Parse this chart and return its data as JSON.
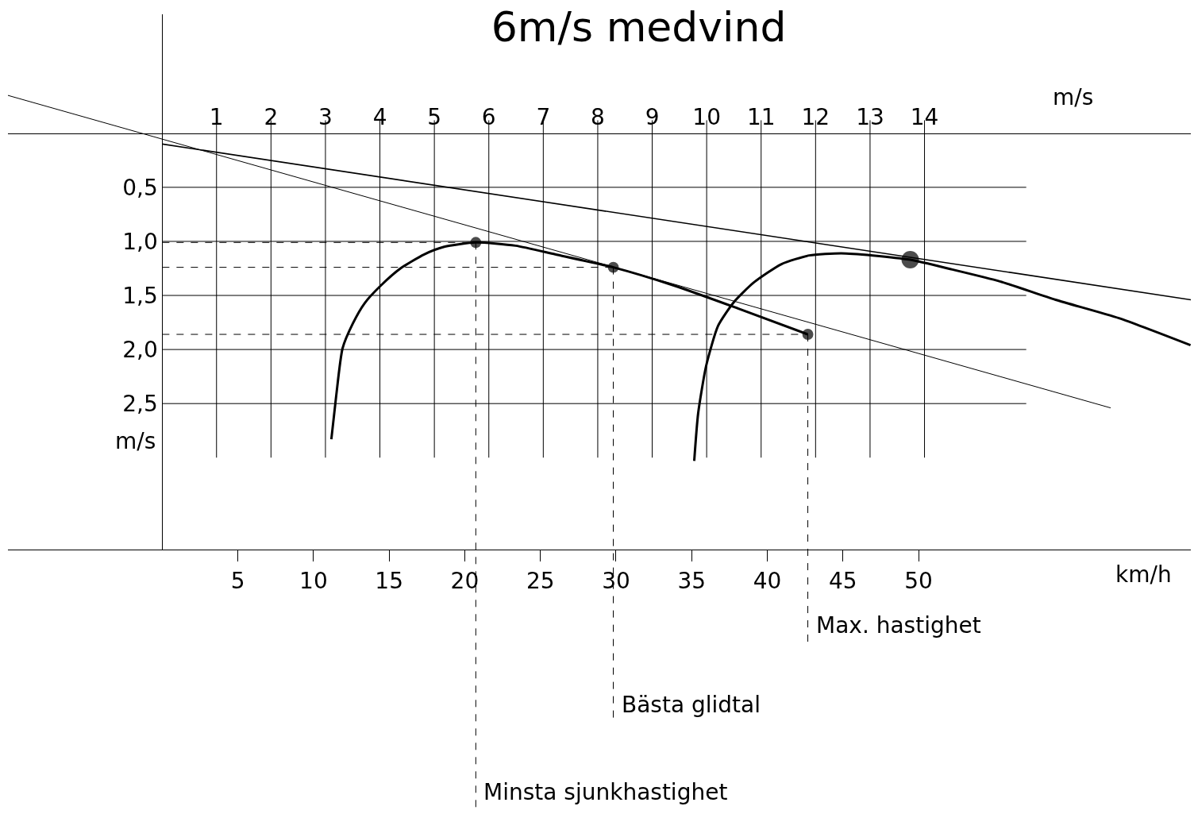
{
  "chart_data": {
    "type": "line",
    "title": "6m/s medvind",
    "xlabel": "km/h",
    "x2label": "m/s",
    "ylabel": "m/s",
    "xlim": [
      -10.2,
      68
    ],
    "xticks": [
      5,
      10,
      15,
      20,
      25,
      30,
      35,
      40,
      45,
      50
    ],
    "x2lim": [
      -2.83,
      18.89
    ],
    "x2ticks": [
      1,
      2,
      3,
      4,
      5,
      6,
      7,
      8,
      9,
      10,
      11,
      12,
      13,
      14
    ],
    "ylim": [
      3.85,
      -1.1
    ],
    "yticks": [
      {
        "value": 0.5,
        "label": "0,5"
      },
      {
        "value": 1.0,
        "label": "1,0"
      },
      {
        "value": 1.5,
        "label": "1,5"
      },
      {
        "value": 2.0,
        "label": "2,0"
      },
      {
        "value": 2.5,
        "label": "2,5"
      }
    ],
    "ref_lines": [
      {
        "axis": "x2",
        "value": 1
      },
      {
        "axis": "x2",
        "value": 2
      },
      {
        "axis": "x2",
        "value": 3
      },
      {
        "axis": "x2",
        "value": 4
      },
      {
        "axis": "x2",
        "value": 5
      },
      {
        "axis": "x2",
        "value": 6
      },
      {
        "axis": "x2",
        "value": 7
      },
      {
        "axis": "x2",
        "value": 8
      },
      {
        "axis": "x2",
        "value": 9
      },
      {
        "axis": "x2",
        "value": 10
      },
      {
        "axis": "x2",
        "value": 11
      },
      {
        "axis": "x2",
        "value": 12
      },
      {
        "axis": "x2",
        "value": 13
      },
      {
        "axis": "x2",
        "value": 14
      },
      {
        "axis": "y",
        "value": 0.5
      },
      {
        "axis": "y",
        "value": 1.0
      },
      {
        "axis": "y",
        "value": 1.5
      },
      {
        "axis": "y",
        "value": 2.0
      },
      {
        "axis": "y",
        "value": 2.5
      }
    ],
    "series": [
      {
        "color": "#000000",
        "x": [
          11.18,
          11.5,
          11.92,
          12.6,
          13.39,
          14.44,
          15.75,
          17.32,
          18.64,
          20.73,
          23.36,
          25.98,
          29.82,
          33.86,
          38.06,
          42.68
        ],
        "values": [
          2.83,
          2.43,
          1.99,
          1.76,
          1.57,
          1.41,
          1.25,
          1.12,
          1.05,
          1.01,
          1.04,
          1.12,
          1.24,
          1.41,
          1.62,
          1.86
        ]
      },
      {
        "color": "#000000",
        "x": [
          35.17,
          35.43,
          35.96,
          36.75,
          37.8,
          39.11,
          40.94,
          42.78,
          44.88,
          46.98,
          49.45,
          52.23,
          55.38,
          59.06,
          63.25,
          67.98
        ],
        "values": [
          3.03,
          2.59,
          2.15,
          1.78,
          1.56,
          1.38,
          1.21,
          1.13,
          1.11,
          1.13,
          1.17,
          1.26,
          1.37,
          1.54,
          1.71,
          1.96
        ]
      },
      {
        "color": "#000000",
        "x": [
          0,
          68
        ],
        "values": [
          0.1,
          1.54
        ]
      },
      {
        "color": "#000000",
        "x": [
          -10.2,
          62.7
        ],
        "values": [
          -0.35,
          2.54
        ]
      },
      {
        "line_style": "dashed",
        "color": "#000000",
        "x": [
          0,
          20.73
        ],
        "values": [
          1.01,
          1.01
        ]
      },
      {
        "line_style": "dashed",
        "color": "#000000",
        "x": [
          0,
          29.82
        ],
        "values": [
          1.24,
          1.24
        ]
      },
      {
        "line_style": "dashed",
        "color": "#000000",
        "x": [
          0,
          42.68
        ],
        "values": [
          1.86,
          1.86
        ]
      },
      {
        "type": "bubble",
        "color": "#000000",
        "x": [
          20.73,
          29.82,
          42.68,
          49.45
        ],
        "values": [
          1.01,
          1.24,
          1.86,
          1.17
        ],
        "sizes": [
          0.4,
          0.4,
          0.4,
          1
        ]
      }
    ],
    "annotations": [
      {
        "text": "Max. hastighet",
        "x": 42.68,
        "y": 1.86
      },
      {
        "text": "Bästa glidtal",
        "x": 29.82,
        "y": 1.24
      },
      {
        "text": "Minsta sjunkhastighet",
        "x": 20.73,
        "y": 1.01
      }
    ]
  }
}
